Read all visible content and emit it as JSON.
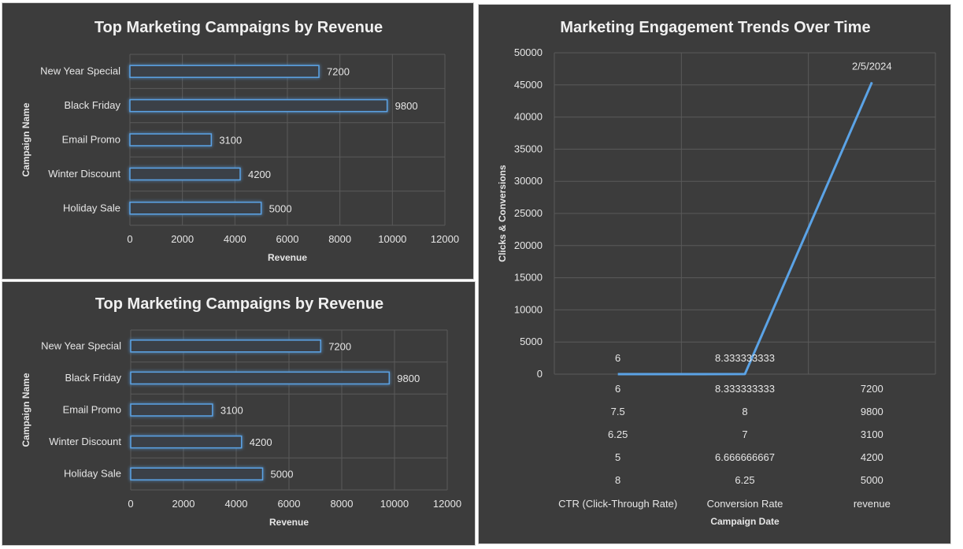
{
  "chart_data": [
    {
      "type": "bar",
      "orientation": "horizontal",
      "title": "Top Marketing Campaigns by Revenue",
      "xlabel": "Revenue",
      "ylabel": "Campaign Name",
      "categories": [
        "New Year Special",
        "Black Friday",
        "Email Promo",
        "Winter Discount",
        "Holiday Sale"
      ],
      "values": [
        7200,
        9800,
        3100,
        4200,
        5000
      ],
      "xlim": [
        0,
        12000
      ],
      "ticks": [
        "0",
        "2000",
        "4000",
        "6000",
        "8000",
        "10000",
        "12000"
      ],
      "grid": true,
      "bar_color": "#5ba3e6",
      "background": "#3c3c3c"
    },
    {
      "type": "bar",
      "orientation": "horizontal",
      "title": "Top Marketing Campaigns by Revenue",
      "xlabel": "Revenue",
      "ylabel": "Campaign Name",
      "categories": [
        "New Year Special",
        "Black Friday",
        "Email Promo",
        "Winter Discount",
        "Holiday Sale"
      ],
      "values": [
        7200,
        9800,
        3100,
        4200,
        5000
      ],
      "xlim": [
        0,
        12000
      ],
      "ticks": [
        "0",
        "2000",
        "4000",
        "6000",
        "8000",
        "10000",
        "12000"
      ],
      "grid": true,
      "bar_color": "#5ba3e6",
      "background": "#3c3c3c"
    },
    {
      "type": "line",
      "title": "Marketing Engagement Trends Over Time",
      "xlabel": "Campaign Date",
      "ylabel": "Clicks & Conversions",
      "categories": [
        "CTR (Click-Through Rate)",
        "Conversion Rate",
        "revenue"
      ],
      "table_rows": [
        [
          "6",
          "8.333333333",
          "7200"
        ],
        [
          "7.5",
          "8",
          "9800"
        ],
        [
          "6.25",
          "7",
          "3100"
        ],
        [
          "5",
          "6.666666667",
          "4200"
        ],
        [
          "8",
          "6.25",
          "5000"
        ]
      ],
      "series": [
        {
          "values": [
            6,
            8.333333333,
            45412
          ]
        }
      ],
      "point_labels": [
        "6",
        "8.333333333",
        "2/5/2024"
      ],
      "ylim": [
        0,
        50000
      ],
      "yticks": [
        "0",
        "5000",
        "10000",
        "15000",
        "20000",
        "25000",
        "30000",
        "35000",
        "40000",
        "45000",
        "50000"
      ],
      "grid": true,
      "line_color": "#5ba3e6",
      "background": "#3c3c3c"
    }
  ]
}
